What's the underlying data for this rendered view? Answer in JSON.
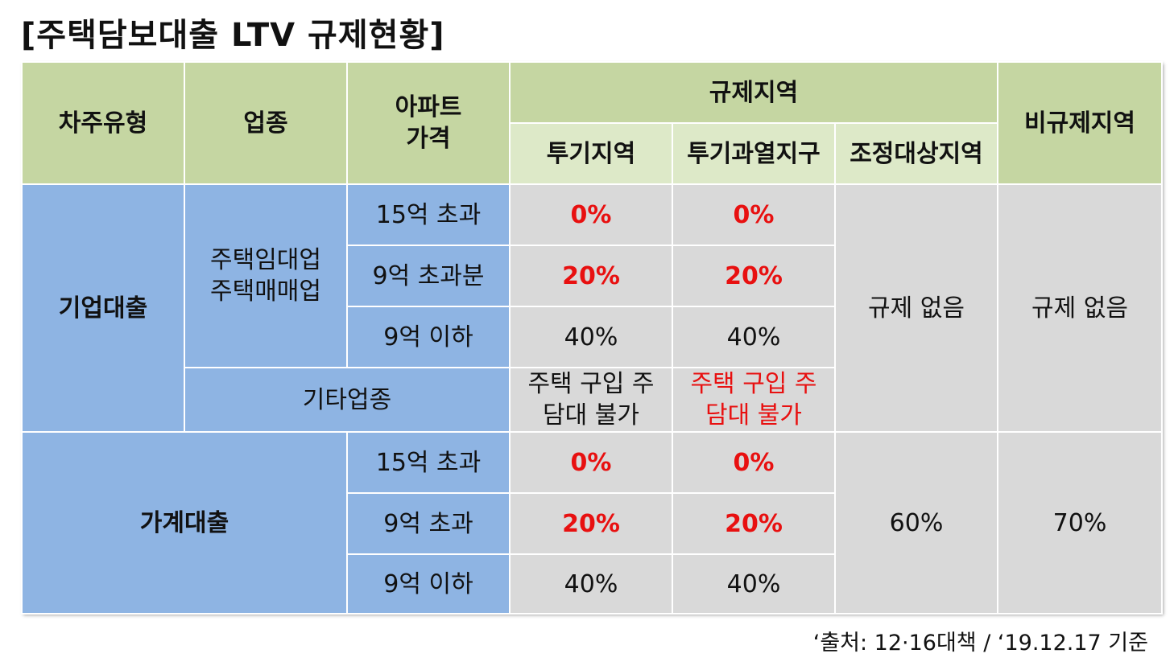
{
  "title": "[주택담보대출 LTV 규제현황]",
  "header": {
    "borrower_type": "차주유형",
    "industry": "업종",
    "apt_price": "아파트 가격",
    "regulated_area": "규제지역",
    "speculation_area": "투기지역",
    "overheated_district": "투기과열지구",
    "adjustment_area": "조정대상지역",
    "non_regulated_area": "비규제지역"
  },
  "corporate": {
    "label": "기업대출",
    "industry_main": "주택임대업 주택매매업",
    "rows": [
      {
        "price": "15억 초과",
        "speculation": "0%",
        "overheated": "0%"
      },
      {
        "price": "9억 초과분",
        "speculation": "20%",
        "overheated": "20%"
      },
      {
        "price": "9억 이하",
        "speculation": "40%",
        "overheated": "40%"
      }
    ],
    "other_industry": "기타업종",
    "other_speculation": "주택 구입 주담대 불가",
    "other_overheated": "주택 구입 주담대 불가",
    "adjustment": "규제 없음",
    "non_regulated": "규제 없음"
  },
  "household": {
    "label": "가계대출",
    "rows": [
      {
        "price": "15억 초과",
        "speculation": "0%",
        "overheated": "0%"
      },
      {
        "price": "9억 초과",
        "speculation": "20%",
        "overheated": "20%"
      },
      {
        "price": "9억 이하",
        "speculation": "40%",
        "overheated": "40%"
      }
    ],
    "adjustment": "60%",
    "non_regulated": "70%"
  },
  "source": "‘출처: 12·16대책 / ‘19.12.17 기준",
  "colors": {
    "header_green": "#c5d6a2",
    "subheader_green": "#dde9c8",
    "label_blue": "#8eb4e3",
    "value_gray": "#d9d9d9",
    "highlight_red": "#e81010"
  }
}
